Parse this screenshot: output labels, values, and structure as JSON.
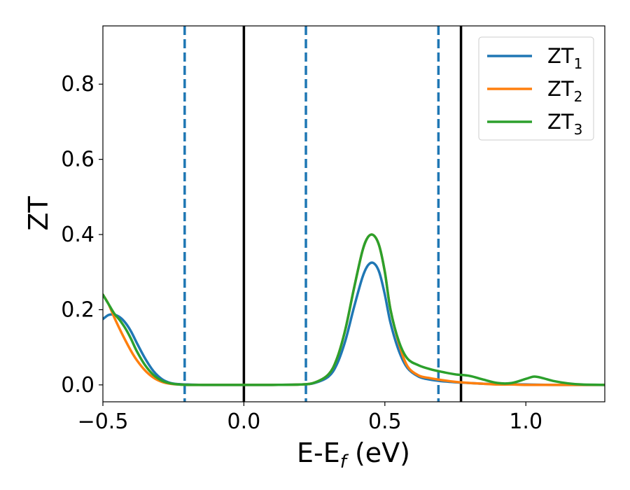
{
  "chart_data": {
    "type": "line",
    "xlabel": "E-E",
    "xlabel_sub": "f",
    "xlabel_unit": " (eV)",
    "ylabel": "ZT",
    "xlim": [
      -0.5,
      1.28
    ],
    "ylim": [
      -0.045,
      0.955
    ],
    "xticks": [
      -0.5,
      0.0,
      0.5,
      1.0
    ],
    "xtick_labels": [
      "−0.5",
      "0.0",
      "0.5",
      "1.0"
    ],
    "yticks": [
      0.0,
      0.2,
      0.4,
      0.6,
      0.8
    ],
    "ytick_labels": [
      "0.0",
      "0.2",
      "0.4",
      "0.6",
      "0.8"
    ],
    "grid": false,
    "legend": "top-right",
    "vlines": [
      {
        "x": 0.0,
        "style": "solid",
        "color": "#000000"
      },
      {
        "x": 0.77,
        "style": "solid",
        "color": "#000000"
      },
      {
        "x": -0.21,
        "style": "dashed",
        "color": "#1f77b4"
      },
      {
        "x": 0.22,
        "style": "dashed",
        "color": "#1f77b4"
      },
      {
        "x": 0.69,
        "style": "dashed",
        "color": "#1f77b4"
      }
    ],
    "series": [
      {
        "name": "ZT",
        "sub": "1",
        "color": "#1f77b4",
        "x": [
          -0.5,
          -0.48,
          -0.46,
          -0.44,
          -0.42,
          -0.4,
          -0.38,
          -0.35,
          -0.32,
          -0.29,
          -0.26,
          -0.23,
          -0.2,
          -0.15,
          -0.1,
          0.0,
          0.1,
          0.2,
          0.25,
          0.3,
          0.33,
          0.36,
          0.39,
          0.42,
          0.44,
          0.46,
          0.48,
          0.5,
          0.52,
          0.55,
          0.58,
          0.62,
          0.66,
          0.7,
          0.75,
          0.8,
          0.85,
          0.9,
          1.0,
          1.1,
          1.28
        ],
        "y": [
          0.175,
          0.186,
          0.187,
          0.18,
          0.165,
          0.142,
          0.112,
          0.07,
          0.036,
          0.015,
          0.005,
          0.002,
          0.001,
          0.0,
          0.0,
          0.0,
          0.0,
          0.001,
          0.005,
          0.022,
          0.055,
          0.118,
          0.205,
          0.285,
          0.318,
          0.324,
          0.3,
          0.24,
          0.165,
          0.09,
          0.045,
          0.022,
          0.014,
          0.01,
          0.007,
          0.005,
          0.003,
          0.002,
          0.001,
          0.0,
          0.0
        ]
      },
      {
        "name": "ZT",
        "sub": "2",
        "color": "#ff7f0e",
        "x": [
          -0.5,
          -0.48,
          -0.46,
          -0.44,
          -0.42,
          -0.4,
          -0.38,
          -0.35,
          -0.32,
          -0.29,
          -0.26,
          -0.23,
          -0.2,
          -0.15,
          -0.1,
          0.0,
          0.1,
          0.2,
          0.25,
          0.3,
          0.33,
          0.36,
          0.39,
          0.42,
          0.44,
          0.46,
          0.48,
          0.5,
          0.52,
          0.55,
          0.58,
          0.62,
          0.66,
          0.7,
          0.75,
          0.8,
          0.85,
          0.9,
          0.95,
          1.0,
          1.05,
          1.1,
          1.2,
          1.28
        ],
        "y": [
          0.24,
          0.215,
          0.18,
          0.148,
          0.118,
          0.09,
          0.066,
          0.038,
          0.019,
          0.008,
          0.003,
          0.001,
          0.0,
          0.0,
          0.0,
          0.0,
          0.0,
          0.001,
          0.006,
          0.028,
          0.07,
          0.148,
          0.255,
          0.355,
          0.393,
          0.398,
          0.37,
          0.3,
          0.2,
          0.11,
          0.05,
          0.025,
          0.018,
          0.013,
          0.008,
          0.005,
          0.003,
          0.001,
          0.001,
          0.0,
          0.0,
          0.0,
          0.0,
          0.0
        ]
      },
      {
        "name": "ZT",
        "sub": "3",
        "color": "#2ca02c",
        "x": [
          -0.5,
          -0.48,
          -0.46,
          -0.44,
          -0.42,
          -0.4,
          -0.38,
          -0.35,
          -0.32,
          -0.29,
          -0.26,
          -0.23,
          -0.2,
          -0.15,
          -0.1,
          0.0,
          0.1,
          0.2,
          0.25,
          0.3,
          0.33,
          0.36,
          0.39,
          0.42,
          0.44,
          0.46,
          0.48,
          0.5,
          0.52,
          0.55,
          0.58,
          0.62,
          0.66,
          0.7,
          0.75,
          0.8,
          0.85,
          0.9,
          0.95,
          1.0,
          1.03,
          1.06,
          1.1,
          1.15,
          1.2,
          1.28
        ],
        "y": [
          0.24,
          0.215,
          0.19,
          0.172,
          0.15,
          0.122,
          0.09,
          0.052,
          0.026,
          0.011,
          0.004,
          0.001,
          0.0,
          0.0,
          0.0,
          0.0,
          0.0,
          0.001,
          0.006,
          0.028,
          0.07,
          0.148,
          0.255,
          0.355,
          0.393,
          0.398,
          0.37,
          0.3,
          0.2,
          0.115,
          0.07,
          0.052,
          0.042,
          0.035,
          0.028,
          0.024,
          0.014,
          0.005,
          0.005,
          0.016,
          0.022,
          0.018,
          0.01,
          0.004,
          0.001,
          0.0
        ]
      }
    ]
  }
}
